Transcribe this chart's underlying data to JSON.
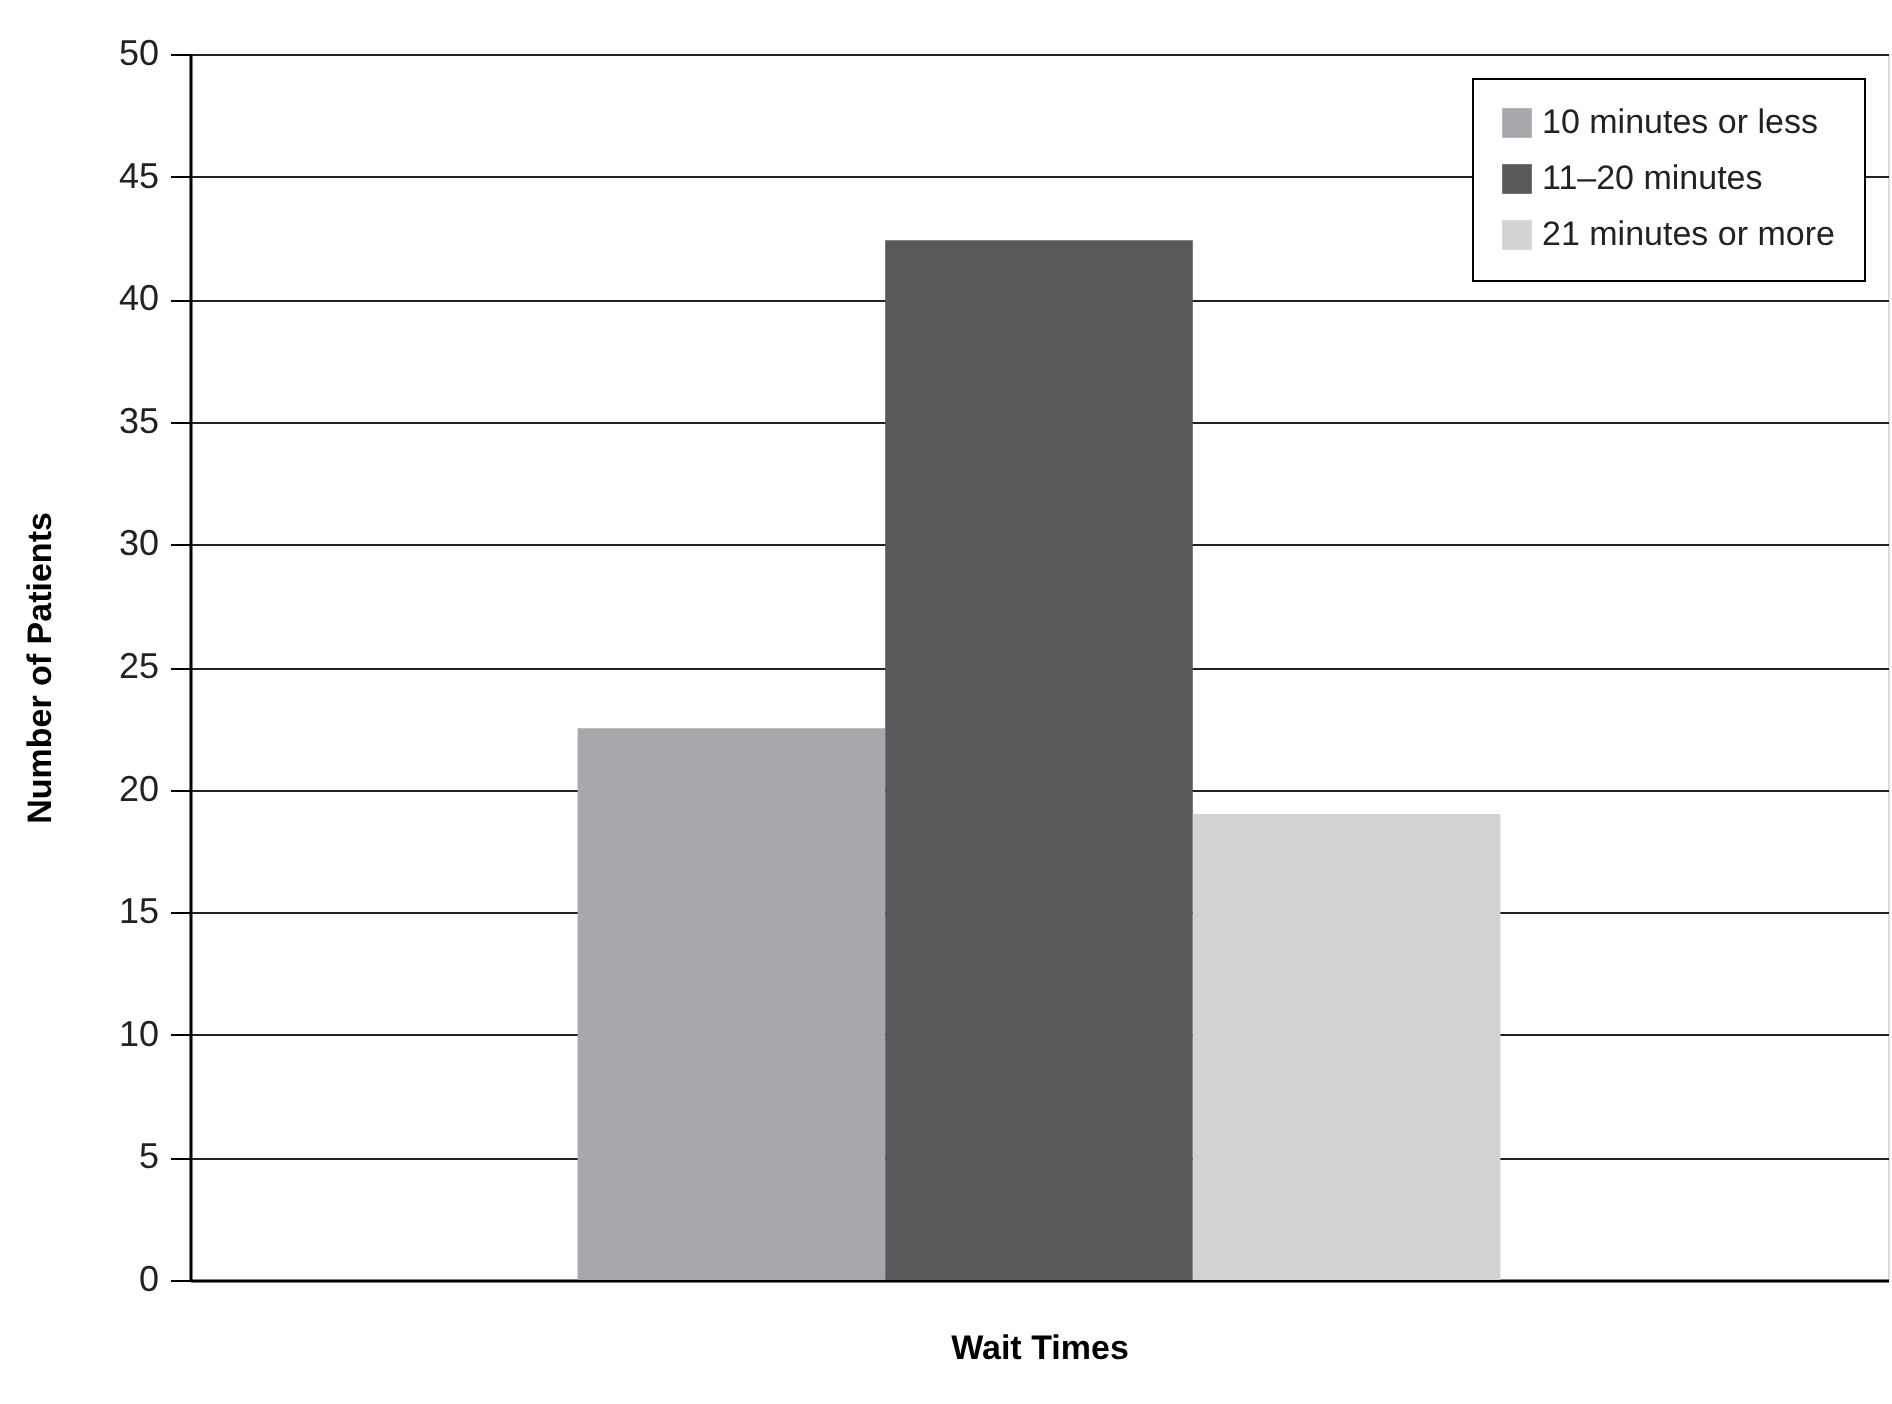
{
  "chart_data": {
    "type": "bar",
    "xlabel": "Wait Times",
    "ylabel": "Number of Patients",
    "categories": [
      null
    ],
    "series": [
      {
        "name": "10 minutes or less",
        "color": "#a7a8ab",
        "values": [
          22.5
        ]
      },
      {
        "name": "11–20 minutes",
        "color": "#58595b",
        "values": [
          42.4
        ]
      },
      {
        "name": "21 minutes or more",
        "color": "#d1d2d4",
        "values": [
          19
        ]
      }
    ],
    "ylim": [
      0,
      50
    ],
    "yticks": [
      0,
      5,
      10,
      15,
      20,
      25,
      30,
      35,
      40,
      45,
      50
    ],
    "grid": "y",
    "legend": "top right",
    "tick_labels": "y"
  }
}
